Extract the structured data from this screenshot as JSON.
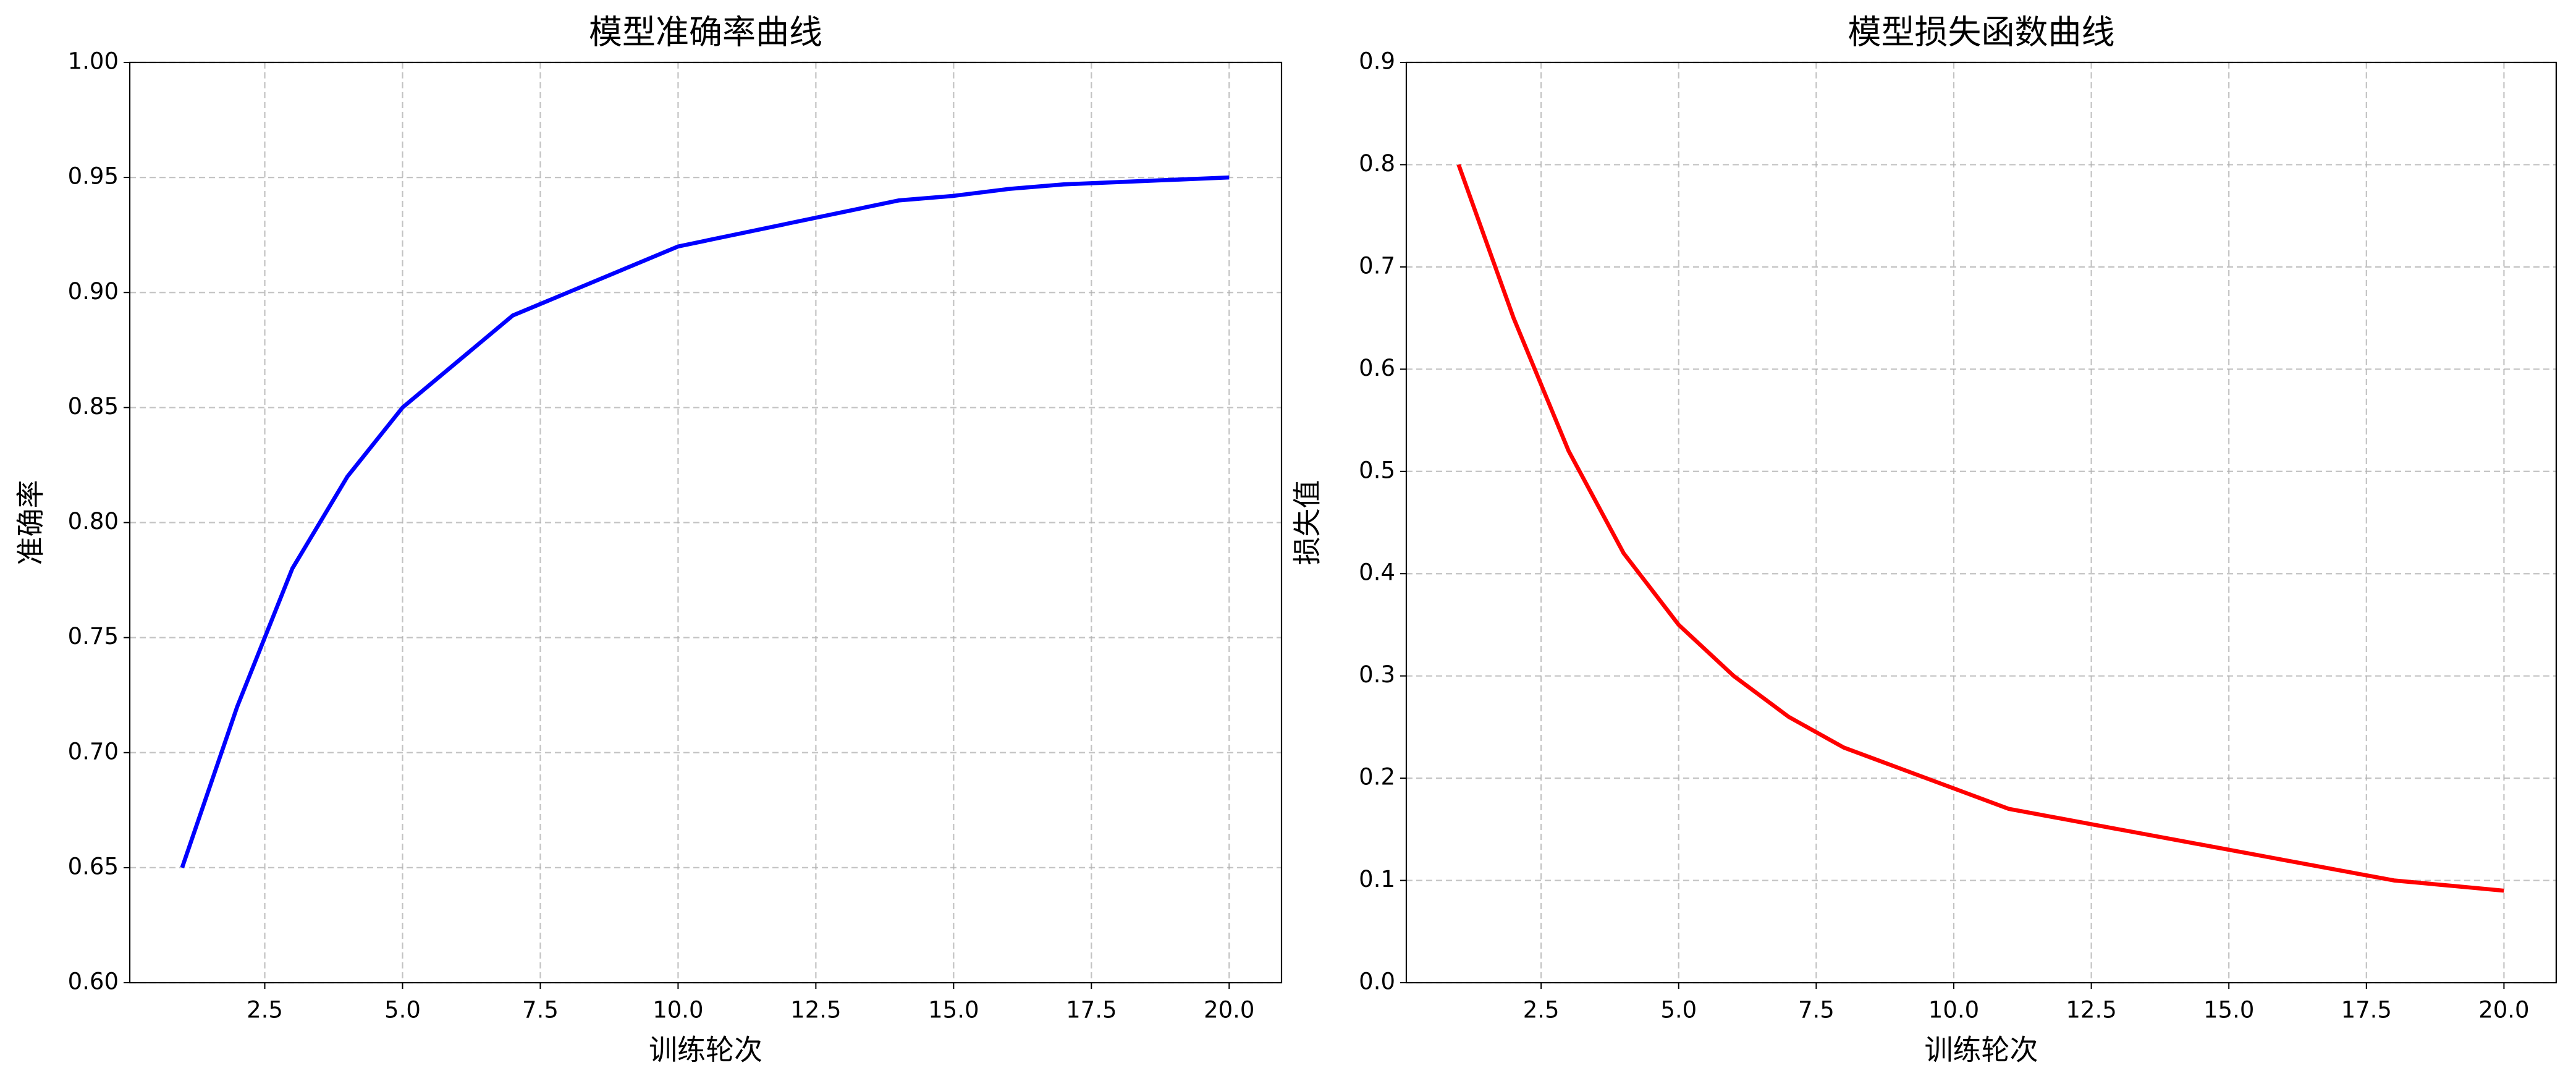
{
  "chart_data": [
    {
      "type": "line",
      "title": "模型准确率曲线",
      "xlabel": "训练轮次",
      "ylabel": "准确率",
      "x": [
        1,
        2,
        3,
        4,
        5,
        6,
        7,
        8,
        9,
        10,
        11,
        12,
        13,
        14,
        15,
        16,
        17,
        18,
        19,
        20
      ],
      "series": [
        {
          "color": "#0000ff",
          "values": [
            0.65,
            0.72,
            0.78,
            0.82,
            0.85,
            0.87,
            0.89,
            0.9,
            0.91,
            0.92,
            0.925,
            0.93,
            0.935,
            0.94,
            0.942,
            0.945,
            0.947,
            0.948,
            0.949,
            0.95
          ]
        }
      ],
      "xlim": [
        0.05,
        20.95
      ],
      "xticks": [
        2.5,
        {
          "value": 5,
          "label": "5.0"
        },
        7.5,
        {
          "value": 10,
          "label": "10.0"
        },
        12.5,
        {
          "value": 15,
          "label": "15.0"
        },
        17.5,
        {
          "value": 20,
          "label": "20.0"
        }
      ],
      "ylim": [
        0.6,
        1.0
      ],
      "yticks": [
        {
          "value": 0.6,
          "label": "0.60"
        },
        0.65,
        {
          "value": 0.7,
          "label": "0.70"
        },
        0.75,
        {
          "value": 0.8,
          "label": "0.80"
        },
        0.85,
        {
          "value": 0.9,
          "label": "0.90"
        },
        0.95,
        {
          "value": 1.0,
          "label": "1.00"
        }
      ],
      "grid": true
    },
    {
      "type": "line",
      "title": "模型损失函数曲线",
      "xlabel": "训练轮次",
      "ylabel": "损失值",
      "x": [
        1,
        2,
        3,
        4,
        5,
        6,
        7,
        8,
        9,
        10,
        11,
        12,
        13,
        14,
        15,
        16,
        17,
        18,
        19,
        20
      ],
      "series": [
        {
          "color": "#ff0000",
          "values": [
            0.8,
            0.65,
            0.52,
            0.42,
            0.35,
            0.3,
            0.26,
            0.23,
            0.21,
            0.19,
            0.17,
            0.16,
            0.15,
            0.14,
            0.13,
            0.12,
            0.11,
            0.1,
            0.095,
            0.09
          ]
        }
      ],
      "xlim": [
        0.05,
        20.95
      ],
      "xticks": [
        2.5,
        {
          "value": 5,
          "label": "5.0"
        },
        7.5,
        {
          "value": 10,
          "label": "10.0"
        },
        12.5,
        {
          "value": 15,
          "label": "15.0"
        },
        17.5,
        {
          "value": 20,
          "label": "20.0"
        }
      ],
      "ylim": [
        0,
        0.9
      ],
      "yticks": [
        {
          "value": 0,
          "label": "0.0"
        },
        0.1,
        0.2,
        0.3,
        0.4,
        0.5,
        0.6,
        0.7,
        0.8,
        0.9
      ],
      "grid": true
    }
  ]
}
